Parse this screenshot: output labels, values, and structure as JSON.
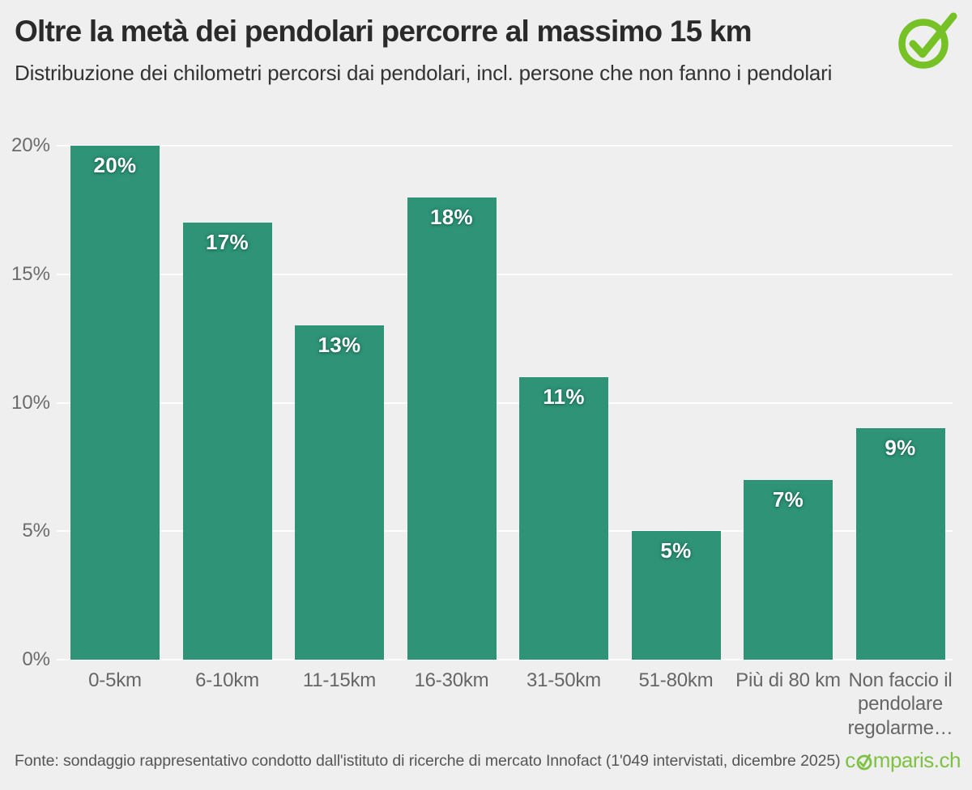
{
  "header": {
    "title": "Oltre la metà dei pendolari percorre al massimo 15 km",
    "subtitle": "Distribuzione dei chilometri percorsi dai pendolari, incl. persone che non fanno i pendolari"
  },
  "chart_data": {
    "type": "bar",
    "title": "Oltre la metà dei pendolari percorre al massimo 15 km",
    "subtitle": "Distribuzione dei chilometri percorsi dai pendolari, incl. persone che non fanno i pendolari",
    "categories": [
      "0-5km",
      "6-10km",
      "11-15km",
      "16-30km",
      "31-50km",
      "51-80km",
      "Più di 80 km",
      "Non faccio il pendolare regolarme…"
    ],
    "values": [
      20,
      17,
      13,
      18,
      11,
      5,
      7,
      9
    ],
    "value_labels": [
      "20%",
      "17%",
      "13%",
      "18%",
      "11%",
      "5%",
      "7%",
      "9%"
    ],
    "xlabel": "",
    "ylabel": "",
    "ylim": [
      0,
      20
    ],
    "yticks": [
      0,
      5,
      10,
      15,
      20
    ],
    "ytick_labels": [
      "0%",
      "5%",
      "10%",
      "15%",
      "20%"
    ],
    "grid": true,
    "legend": "none",
    "bar_color": "#2E9377",
    "background_color": "#EFEFEF",
    "gridline_color": "#FBFBFB",
    "value_label_color": "#FFFFFF",
    "axis_label_color": "#666666"
  },
  "footer": {
    "source": "Fonte: sondaggio rappresentativo condotto dall'istituto di ricerche di mercato Innofact (1'049 intervistati, dicembre 2025)",
    "brand": {
      "name": "comparis.ch",
      "prefix": "c",
      "suffix": "mparis.ch",
      "color": "#7DC242"
    }
  },
  "icons": {
    "badge": "check-circle-icon",
    "badge_color": "#76C226"
  }
}
